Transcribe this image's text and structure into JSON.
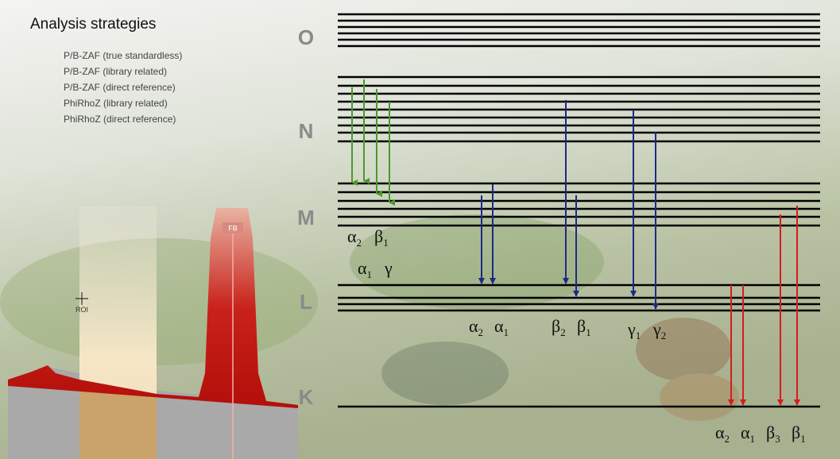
{
  "title": "Analysis strategies",
  "strategies": [
    "P/B-ZAF (true standardless)",
    "P/B-ZAF (library related)",
    "P/B-ZAF (direct reference)",
    "PhiRhoZ (library related)",
    "PhiRhoZ (direct reference)"
  ],
  "shells": [
    "O",
    "N",
    "M",
    "L",
    "K"
  ],
  "line_labels": [
    [
      {
        "letter": "α",
        "sub": "2"
      },
      {
        "letter": "β",
        "sub": "1"
      }
    ],
    [
      {
        "letter": "α",
        "sub": "1"
      },
      {
        "letter": "γ"
      }
    ],
    [
      {
        "letter": "α",
        "sub": "2"
      },
      {
        "letter": "α",
        "sub": "1"
      }
    ],
    [
      {
        "letter": "β",
        "sub": "2"
      },
      {
        "letter": "β",
        "sub": "1"
      }
    ],
    [
      {
        "letter": "γ",
        "sub": "1"
      },
      {
        "letter": "γ",
        "sub": "2"
      }
    ],
    [
      {
        "letter": "α",
        "sub": "2"
      },
      {
        "letter": "α",
        "sub": "1"
      },
      {
        "letter": "β",
        "sub": "3"
      },
      {
        "letter": "β",
        "sub": "1"
      }
    ]
  ],
  "spectrum": {
    "roi": "ROI",
    "peak": "FB"
  }
}
